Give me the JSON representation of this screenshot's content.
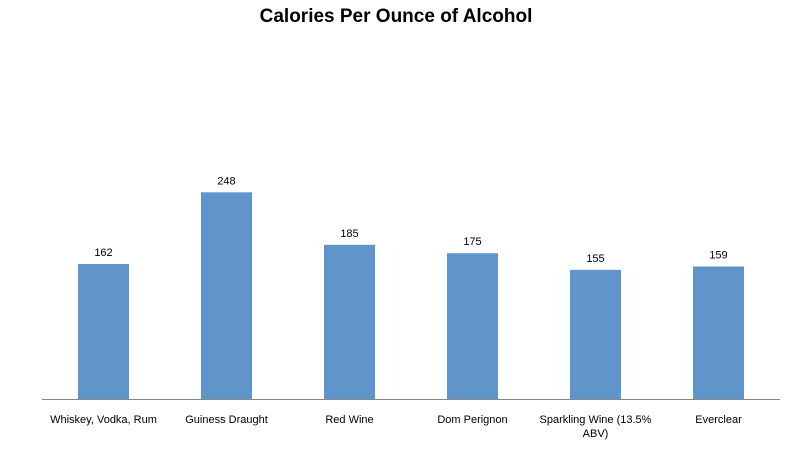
{
  "chart_data": {
    "type": "bar",
    "title": "Calories Per Ounce of Alcohol",
    "categories": [
      [
        "Whiskey, Vodka, Rum"
      ],
      [
        "Guiness Draught"
      ],
      [
        "Red Wine"
      ],
      [
        "Dom Perignon"
      ],
      [
        "Sparkling Wine (13.5%",
        "ABV)"
      ],
      [
        "Everclear"
      ]
    ],
    "values": [
      162,
      248,
      185,
      175,
      155,
      159
    ],
    "ylim": [
      0,
      300
    ],
    "bar_color": "#6095CB",
    "axis_color": "#868686",
    "grid": false,
    "legend": false,
    "data_labels": true
  }
}
